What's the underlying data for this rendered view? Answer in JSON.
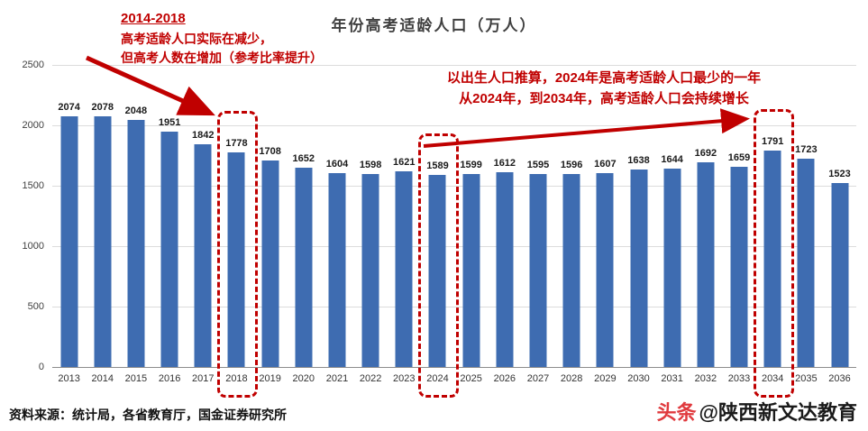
{
  "title": "年份高考适龄人口（万人）",
  "source": "资料来源：统计局，各省教育厅，国金证券研究所",
  "watermark": {
    "prefix": "头条",
    "handle": "@陕西新文达教育"
  },
  "annotations": {
    "left": {
      "heading": "2014-2018",
      "line1": "高考适龄人口实际在减少，",
      "line2": "但高考人数在增加（参考比率提升）"
    },
    "right": {
      "line1": "以出生人口推算，2024年是高考适龄人口最少的一年",
      "line2": "从2024年，到2034年，高考适龄人口会持续增长"
    }
  },
  "colors": {
    "bar": "#3E6CB1",
    "accent_red": "#C00000",
    "gridline": "#DCDCDC"
  },
  "chart_data": {
    "type": "bar",
    "title": "年份高考适龄人口（万人）",
    "categories": [
      "2013",
      "2014",
      "2015",
      "2016",
      "2017",
      "2018",
      "2019",
      "2020",
      "2021",
      "2022",
      "2023",
      "2024",
      "2025",
      "2026",
      "2027",
      "2028",
      "2029",
      "2030",
      "2031",
      "2032",
      "2033",
      "2034",
      "2035",
      "2036"
    ],
    "values": [
      2074,
      2078,
      2048,
      1951,
      1842,
      1778,
      1708,
      1652,
      1604,
      1598,
      1621,
      1589,
      1599,
      1612,
      1595,
      1596,
      1607,
      1638,
      1644,
      1692,
      1659,
      1791,
      1723,
      1523
    ],
    "xlabel": "",
    "ylabel": "",
    "ylim": [
      0,
      2500
    ],
    "yticks": [
      0,
      500,
      1000,
      1500,
      2000,
      2500
    ],
    "grid": true,
    "legend": "none",
    "bar_color": "#3E6CB1",
    "highlight_years": [
      "2018",
      "2024",
      "2034"
    ]
  }
}
